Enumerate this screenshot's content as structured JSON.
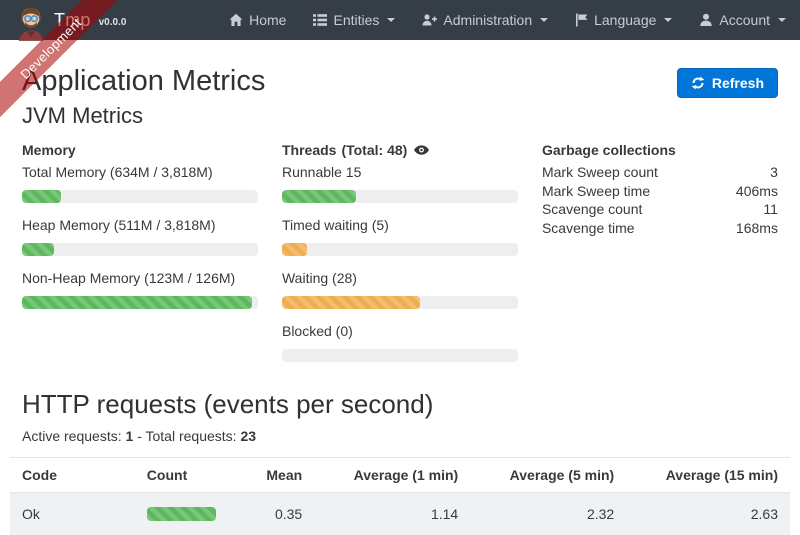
{
  "navbar": {
    "brand": "Tmp",
    "version": "v0.0.0",
    "items": [
      {
        "label": "Home",
        "icon": "home-icon",
        "caret": false
      },
      {
        "label": "Entities",
        "icon": "list-icon",
        "caret": true
      },
      {
        "label": "Administration",
        "icon": "user-plus-icon",
        "caret": true
      },
      {
        "label": "Language",
        "icon": "flag-icon",
        "caret": true
      },
      {
        "label": "Account",
        "icon": "user-icon",
        "caret": true
      }
    ]
  },
  "ribbon": {
    "label": "Development"
  },
  "page": {
    "title": "Application Metrics",
    "refresh_label": "Refresh",
    "jvm_title": "JVM Metrics"
  },
  "memory": {
    "heading": "Memory",
    "items": [
      {
        "label": "Total Memory (634M / 3,818M)",
        "percent": 16.6,
        "color": "green"
      },
      {
        "label": "Heap Memory (511M / 3,818M)",
        "percent": 13.4,
        "color": "green"
      },
      {
        "label": "Non-Heap Memory (123M / 126M)",
        "percent": 97.6,
        "color": "green"
      }
    ]
  },
  "threads": {
    "heading": "Threads",
    "total_label": "(Total: 48)",
    "items": [
      {
        "label": "Runnable 15",
        "percent": 31.2,
        "color": "green"
      },
      {
        "label": "Timed waiting (5)",
        "percent": 10.4,
        "color": "orange"
      },
      {
        "label": "Waiting (28)",
        "percent": 58.3,
        "color": "orange"
      },
      {
        "label": "Blocked (0)",
        "percent": 0,
        "color": "none"
      }
    ]
  },
  "garbage": {
    "heading": "Garbage collections",
    "rows": [
      {
        "label": "Mark Sweep count",
        "value": "3"
      },
      {
        "label": "Mark Sweep time",
        "value": "406ms"
      },
      {
        "label": "Scavenge count",
        "value": "11"
      },
      {
        "label": "Scavenge time",
        "value": "168ms"
      }
    ]
  },
  "http": {
    "title": "HTTP requests (events per second)",
    "active_label": "Active requests:",
    "active_value": "1",
    "separator": "-",
    "total_label": "Total requests:",
    "total_value": "23",
    "table": {
      "headers": [
        "Code",
        "Count",
        "Mean",
        "Average (1 min)",
        "Average (5 min)",
        "Average (15 min)"
      ],
      "rows": [
        {
          "code": "Ok",
          "count_bar": {
            "percent": 100,
            "color": "green"
          },
          "mean": "0.35",
          "avg1": "1.14",
          "avg5": "2.32",
          "avg15": "2.63"
        }
      ]
    }
  },
  "colors": {
    "navbar_bg": "#353d47",
    "accent_blue": "#0275d8",
    "success_green": "#5cb85c",
    "warning_orange": "#f0ad4e",
    "ribbon_red": "rgba(170,0,0,0.55)"
  }
}
